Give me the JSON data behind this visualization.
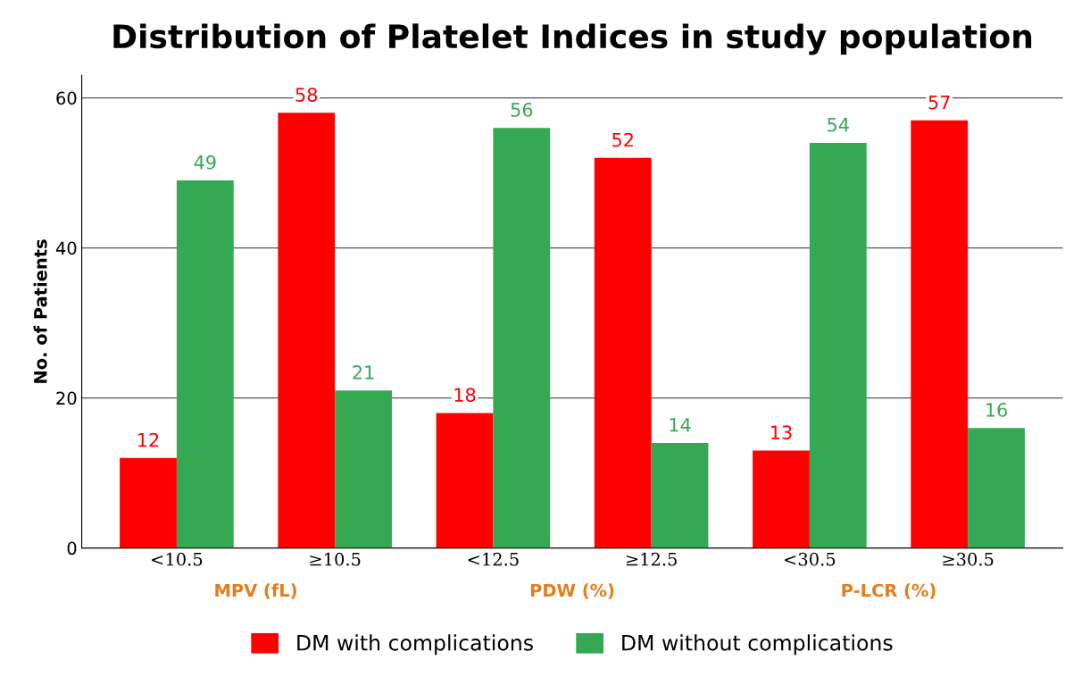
{
  "chart_data": {
    "type": "bar",
    "title": "Distribution of Platelet Indices in study population",
    "ylabel": "No. of Patients",
    "categories": [
      "<10.5",
      "≥10.5",
      "<12.5",
      "≥12.5",
      "<30.5",
      "≥30.5"
    ],
    "series": [
      {
        "name": "DM with complications",
        "color": "#ff0000",
        "values": [
          12,
          58,
          18,
          52,
          13,
          57
        ]
      },
      {
        "name": "DM without complications",
        "color": "#34a853",
        "values": [
          49,
          21,
          56,
          14,
          54,
          16
        ]
      }
    ],
    "annotations": [
      "MPV (fL)",
      "PDW (%)",
      "P-LCR (%)"
    ],
    "ylim": [
      0,
      63
    ],
    "yticks": [
      0,
      20,
      40,
      60
    ],
    "grid": "y",
    "data_labels": true,
    "legend": "bottom"
  }
}
